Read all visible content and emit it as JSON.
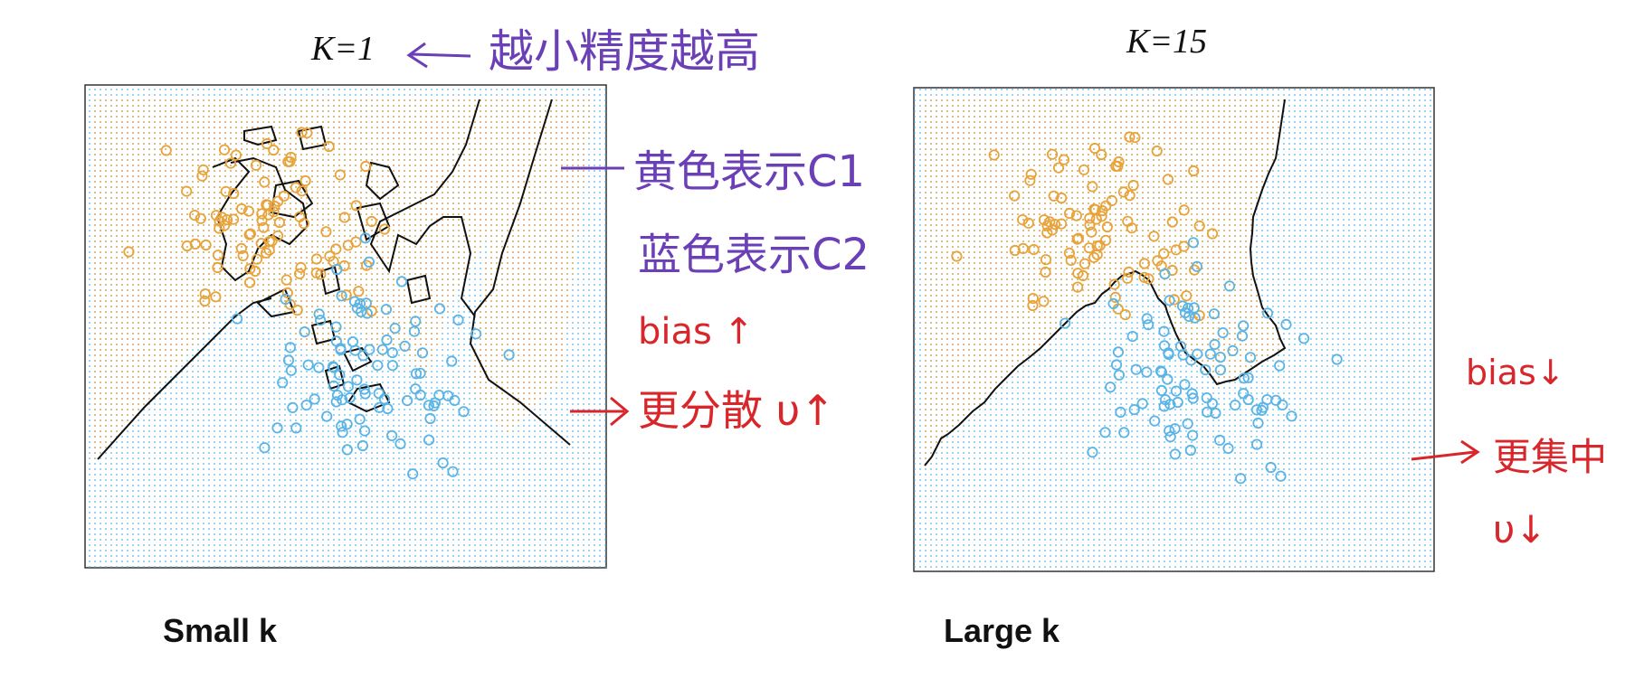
{
  "left_panel": {
    "title": "K=1",
    "caption": "Small k",
    "note_arrow_text": "越小精度越高",
    "note_yellow": "黄色表示C1",
    "note_blue": "蓝色表示C2",
    "note_bias": "bias ↑",
    "note_variance": "更分散 υ↑"
  },
  "right_panel": {
    "title": "K=15",
    "caption": "Large k",
    "note_bias": "bias↓",
    "note_variance": "更集中",
    "note_v": "υ↓"
  },
  "colors": {
    "class_c1_orange": "#e8a33a",
    "class_c2_blue": "#5ab4e5",
    "boundary": "#111111",
    "ink_purple": "#6b3fb5",
    "ink_red": "#d8262b"
  },
  "icons": [
    "left-arrow-icon",
    "right-arrow-icon",
    "down-arrow-icon",
    "up-arrow-icon"
  ]
}
